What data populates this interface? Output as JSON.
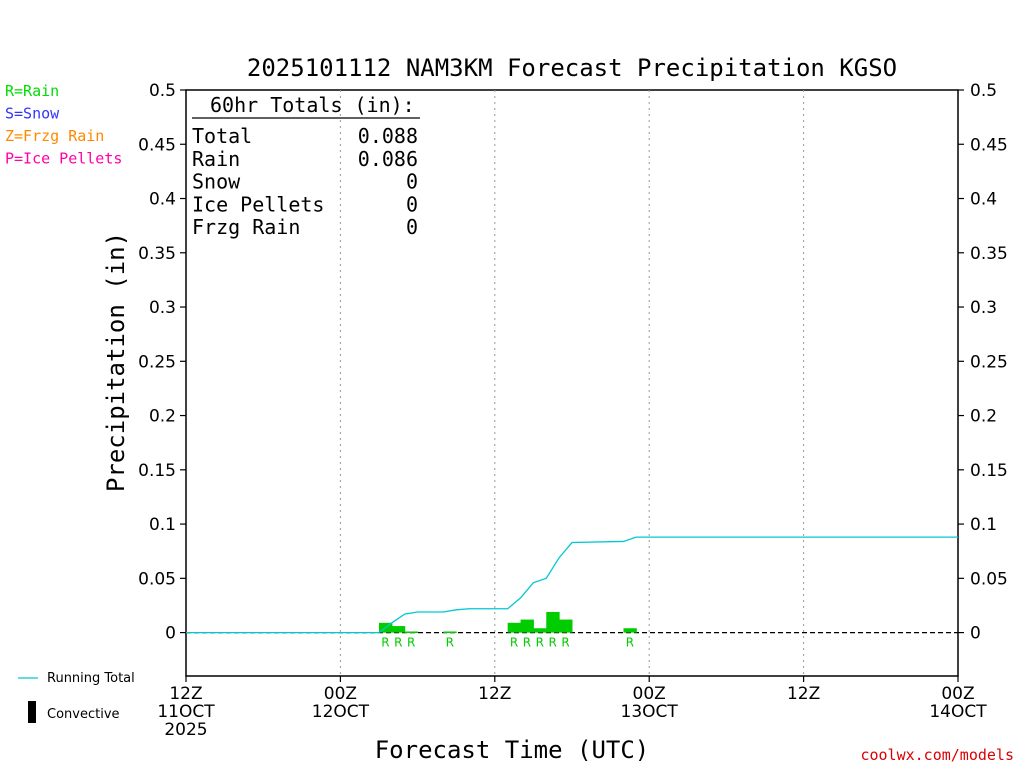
{
  "chart_data": {
    "type": "bar",
    "title": "2025101112 NAM3KM Forecast Precipitation KGSO",
    "xlabel": "Forecast Time (UTC)",
    "ylabel": "Precipitation (in)",
    "ylim": [
      -0.04,
      0.5
    ],
    "yticks": [
      0,
      0.05,
      0.1,
      0.15,
      0.2,
      0.25,
      0.3,
      0.35,
      0.4,
      0.45,
      0.5
    ],
    "ytick_labels": [
      "0",
      "0.05",
      "0.1",
      "0.15",
      "0.2",
      "0.25",
      "0.3",
      "0.35",
      "0.4",
      "0.45",
      "0.5"
    ],
    "xlim_hours": [
      0,
      60
    ],
    "xticks": [
      {
        "hour": 0,
        "line1": "12Z",
        "line2": "11OCT",
        "line3": "2025"
      },
      {
        "hour": 12,
        "line1": "00Z",
        "line2": "12OCT",
        "line3": ""
      },
      {
        "hour": 24,
        "line1": "12Z",
        "line2": "",
        "line3": ""
      },
      {
        "hour": 36,
        "line1": "00Z",
        "line2": "13OCT",
        "line3": ""
      },
      {
        "hour": 48,
        "line1": "12Z",
        "line2": "",
        "line3": ""
      },
      {
        "hour": 60,
        "line1": "00Z",
        "line2": "14OCT",
        "line3": ""
      }
    ],
    "grid": true,
    "series": [
      {
        "name": "Rain",
        "color": "#00cc00",
        "bars": [
          {
            "hour": 16,
            "value": 0.009,
            "type": "R"
          },
          {
            "hour": 17,
            "value": 0.006,
            "type": "R"
          },
          {
            "hour": 18,
            "value": 0.001,
            "type": "R"
          },
          {
            "hour": 21,
            "value": 0.001,
            "type": "R"
          },
          {
            "hour": 26,
            "value": 0.009,
            "type": "R"
          },
          {
            "hour": 27,
            "value": 0.012,
            "type": "R"
          },
          {
            "hour": 28,
            "value": 0.004,
            "type": "R"
          },
          {
            "hour": 29,
            "value": 0.019,
            "type": "R"
          },
          {
            "hour": 30,
            "value": 0.012,
            "type": "R"
          },
          {
            "hour": 35,
            "value": 0.004,
            "type": "R"
          }
        ]
      },
      {
        "name": "Running Total",
        "color": "#00c8d2",
        "points": [
          [
            0,
            0
          ],
          [
            15,
            0
          ],
          [
            16,
            0.009
          ],
          [
            17,
            0.017
          ],
          [
            18,
            0.019
          ],
          [
            19,
            0.019
          ],
          [
            20,
            0.019
          ],
          [
            21,
            0.021
          ],
          [
            22,
            0.022
          ],
          [
            24,
            0.022
          ],
          [
            25,
            0.022
          ],
          [
            26,
            0.032
          ],
          [
            27,
            0.046
          ],
          [
            28,
            0.05
          ],
          [
            29,
            0.069
          ],
          [
            30,
            0.083
          ],
          [
            34,
            0.084
          ],
          [
            35,
            0.088
          ],
          [
            60,
            0.088
          ]
        ]
      }
    ]
  },
  "precip_legend": [
    {
      "text": "R=Rain",
      "color": "#00dd00"
    },
    {
      "text": "S=Snow",
      "color": "#3333ff"
    },
    {
      "text": "Z=Frzg Rain",
      "color": "#ff8800"
    },
    {
      "text": "P=Ice Pellets",
      "color": "#ff00aa"
    }
  ],
  "totals": {
    "header": "60hr Totals (in):",
    "rows": [
      {
        "label": "Total",
        "value": "0.088"
      },
      {
        "label": "Rain",
        "value": "0.086"
      },
      {
        "label": "Snow",
        "value": "0"
      },
      {
        "label": "Ice Pellets",
        "value": "0"
      },
      {
        "label": "Frzg Rain",
        "value": "0"
      }
    ]
  },
  "line_legend": {
    "running_total": "Running Total",
    "convective": "Convective"
  },
  "credit": "coolwx.com/models",
  "colors": {
    "rain": "#00cc00",
    "running_total": "#00c8d2",
    "credit": "#dd0000",
    "grid": "#999999"
  }
}
